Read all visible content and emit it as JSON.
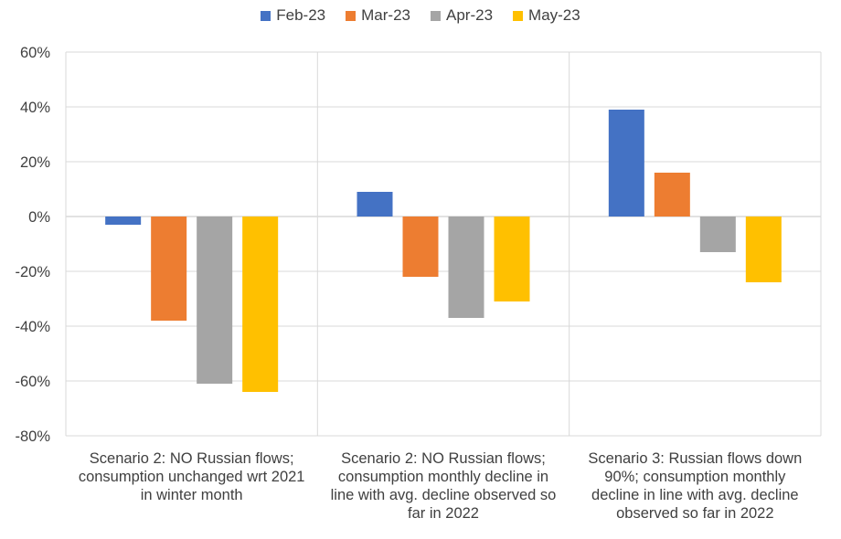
{
  "chart_data": {
    "type": "bar",
    "title": "",
    "xlabel": "",
    "ylabel": "",
    "ylim": [
      -80,
      60
    ],
    "ytick_values": [
      -80,
      -60,
      -40,
      -20,
      0,
      20,
      40,
      60
    ],
    "ytick_labels": [
      "-80%",
      "-60%",
      "-40%",
      "-20%",
      "0%",
      "20%",
      "40%",
      "60%"
    ],
    "categories": [
      "Scenario 2: NO Russian flows; consumption unchanged wrt 2021 in winter month",
      "Scenario 2: NO Russian flows; consumption monthly decline in line with avg. decline observed so far in 2022",
      "Scenario 3: Russian flows down 90%; consumption monthly decline in line with avg. decline observed so far in 2022"
    ],
    "category_lines": [
      [
        "Scenario 2: NO Russian flows;",
        "consumption unchanged wrt 2021",
        "in winter month"
      ],
      [
        "Scenario 2: NO Russian flows;",
        "consumption monthly decline in",
        "line with avg. decline observed so",
        "far in 2022"
      ],
      [
        "Scenario 3: Russian flows down",
        "90%; consumption monthly",
        "decline in line with avg. decline",
        "observed so far in 2022"
      ]
    ],
    "series": [
      {
        "name": "Feb-23",
        "color": "#4472C4",
        "values": [
          -3,
          9,
          39
        ]
      },
      {
        "name": "Mar-23",
        "color": "#ED7D31",
        "values": [
          -38,
          -22,
          16
        ]
      },
      {
        "name": "Apr-23",
        "color": "#A5A5A5",
        "values": [
          -61,
          -37,
          -13
        ]
      },
      {
        "name": "May-23",
        "color": "#FFC000",
        "values": [
          -64,
          -31,
          -24
        ]
      }
    ],
    "legend_position": "top",
    "grid": true
  }
}
